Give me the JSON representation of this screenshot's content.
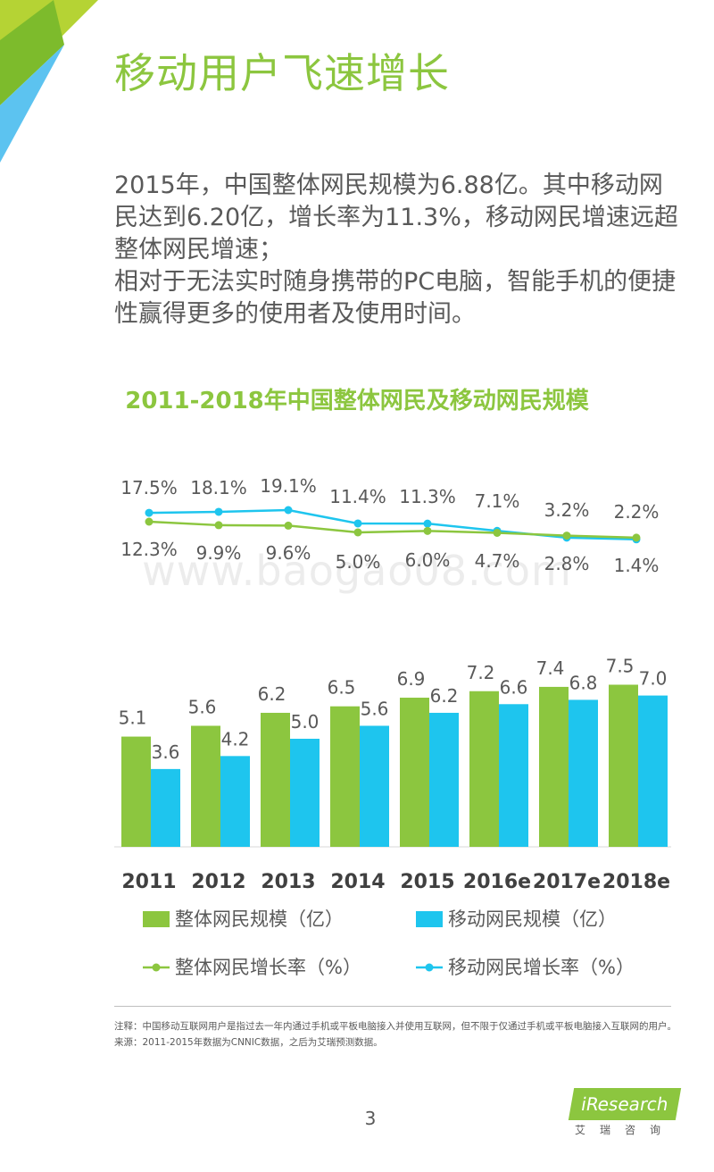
{
  "page": {
    "title": "移动用户飞速增长",
    "paragraphs": [
      "2015年，中国整体网民规模为6.88亿。其中移动网民达到6.20亿，增长率为11.3%，移动网民增速远超整体网民增速；",
      "相对于无法实时随身携带的PC电脑，智能手机的便捷性赢得更多的使用者及使用时间。"
    ],
    "watermark": "www.baogao08.com",
    "footnote": [
      "注释：中国移动互联网用户是指过去一年内通过手机或平板电脑接入并使用互联网，但不限于仅通过手机或平板电脑接入互联网的用户。",
      "来源：2011-2015年数据为CNNIC数据，之后为艾瑞预测数据。"
    ],
    "page_number": "3",
    "logo_text": "iResearch",
    "logo_subtext": "艾瑞咨询"
  },
  "colors": {
    "green": "#8cc63f",
    "cyan": "#1ec5ee",
    "corner_light_green": "#b5d334",
    "corner_blue": "#5cc3f0"
  },
  "chart_data": {
    "type": "bar",
    "title": "2011-2018年中国整体网民及移动网民规模",
    "categories": [
      "2011",
      "2012",
      "2013",
      "2014",
      "2015",
      "2016e",
      "2017e",
      "2018e"
    ],
    "series": [
      {
        "name": "整体网民规模（亿）",
        "kind": "bar",
        "color": "#8cc63f",
        "values": [
          5.1,
          5.6,
          6.2,
          6.5,
          6.9,
          7.2,
          7.4,
          7.5
        ],
        "labels": [
          "5.1",
          "5.6",
          "6.2",
          "6.5",
          "6.9",
          "7.2",
          "7.4",
          "7.5"
        ]
      },
      {
        "name": "移动网民规模（亿）",
        "kind": "bar",
        "color": "#1ec5ee",
        "values": [
          3.6,
          4.2,
          5.0,
          5.6,
          6.2,
          6.6,
          6.8,
          7.0
        ],
        "labels": [
          "3.6",
          "4.2",
          "5.0",
          "5.6",
          "6.2",
          "6.6",
          "6.8",
          "7.0"
        ]
      },
      {
        "name": "整体网民增长率（%）",
        "kind": "line",
        "color": "#8cc63f",
        "values": [
          12.3,
          9.9,
          9.6,
          5.0,
          6.0,
          4.7,
          2.8,
          1.4
        ],
        "labels": [
          "12.3%",
          "9.9%",
          "9.6%",
          "5.0%",
          "6.0%",
          "4.7%",
          "2.8%",
          "1.4%"
        ]
      },
      {
        "name": "移动网民增长率（%）",
        "kind": "line",
        "color": "#1ec5ee",
        "values": [
          17.5,
          18.1,
          19.1,
          11.4,
          11.3,
          7.1,
          3.2,
          2.2
        ],
        "labels": [
          "17.5%",
          "18.1%",
          "19.1%",
          "11.4%",
          "11.3%",
          "7.1%",
          "3.2%",
          "2.2%"
        ]
      }
    ],
    "legend_position": "bottom",
    "grid": false
  }
}
